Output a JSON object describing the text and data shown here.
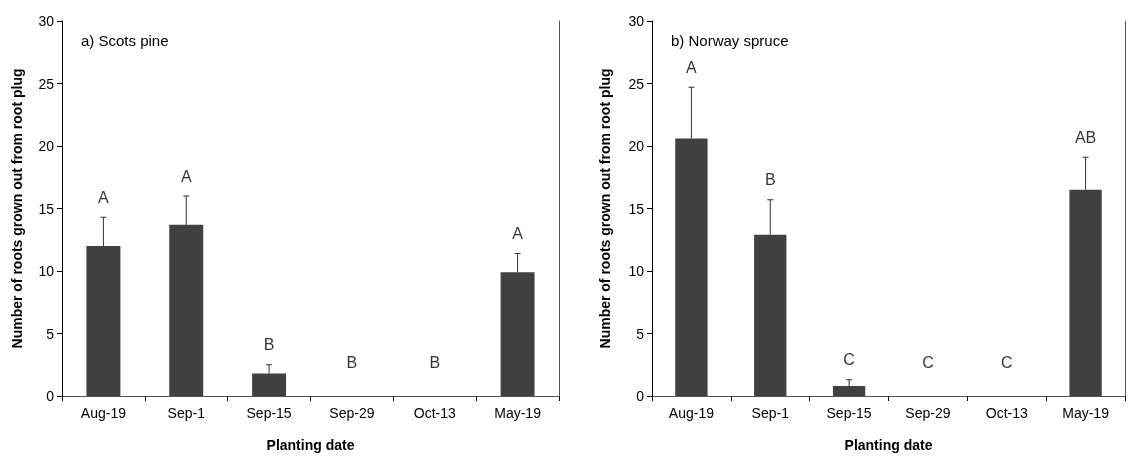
{
  "chart_data": [
    {
      "type": "bar",
      "title": "a) Scots pine",
      "xlabel": "Planting date",
      "ylabel": "Number of roots grown out from root plug",
      "categories": [
        "Aug-19",
        "Sep-1",
        "Sep-15",
        "Sep-29",
        "Oct-13",
        "May-19"
      ],
      "values": [
        12.0,
        13.7,
        1.8,
        0,
        0,
        9.9
      ],
      "errors": [
        [
          12.0,
          14.3
        ],
        [
          13.7,
          16.0
        ],
        [
          1.8,
          2.5
        ],
        null,
        null,
        [
          9.9,
          11.4
        ]
      ],
      "color": "#404040",
      "ylim": [
        0,
        30
      ],
      "yticks": [
        0,
        5,
        10,
        15,
        20,
        25,
        30
      ],
      "annotations": [
        "A",
        "A",
        "B",
        "B",
        "B",
        "A"
      ]
    },
    {
      "type": "bar",
      "title": "b) Norway spruce",
      "xlabel": "Planting date",
      "ylabel": "Number of roots grown out from root plug",
      "categories": [
        "Aug-19",
        "Sep-1",
        "Sep-15",
        "Sep-29",
        "Oct-13",
        "May-19"
      ],
      "values": [
        20.6,
        12.9,
        0.8,
        0,
        0,
        16.5
      ],
      "errors": [
        [
          20.6,
          24.7
        ],
        [
          12.9,
          15.7
        ],
        [
          0.8,
          1.3
        ],
        null,
        null,
        [
          16.5,
          19.1
        ]
      ],
      "color": "#404040",
      "ylim": [
        0,
        30
      ],
      "yticks": [
        0,
        5,
        10,
        15,
        20,
        25,
        30
      ],
      "annotations": [
        "A",
        "B",
        "C",
        "C",
        "C",
        "AB"
      ]
    }
  ]
}
